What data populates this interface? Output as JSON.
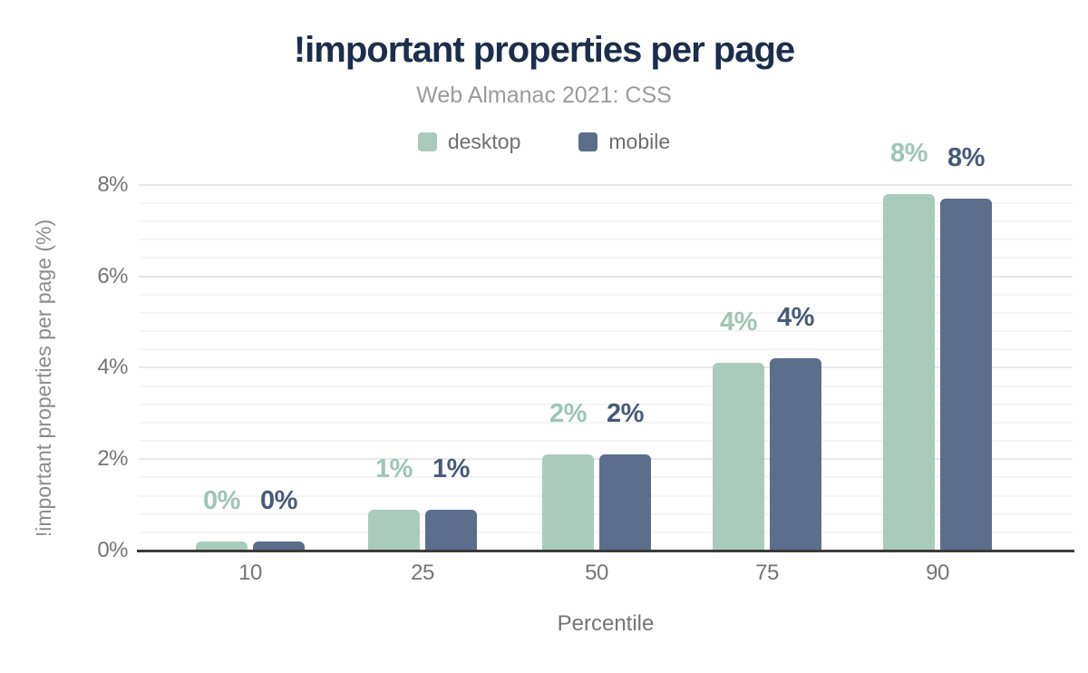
{
  "chart_data": {
    "type": "bar",
    "title": "!important properties per page",
    "subtitle": "Web Almanac 2021: CSS",
    "xlabel": "Percentile",
    "ylabel": "!important properties per page (%)",
    "categories": [
      "10",
      "25",
      "50",
      "75",
      "90"
    ],
    "series": [
      {
        "name": "desktop",
        "color": "#aacbbc",
        "label_color": "#9fc5b4",
        "values": [
          0.2,
          0.9,
          2.1,
          4.1,
          7.8
        ],
        "value_labels": [
          "0%",
          "1%",
          "2%",
          "4%",
          "8%"
        ]
      },
      {
        "name": "mobile",
        "color": "#5c6e8c",
        "label_color": "#48597b",
        "values": [
          0.2,
          0.9,
          2.1,
          4.2,
          7.7
        ],
        "value_labels": [
          "0%",
          "1%",
          "2%",
          "4%",
          "8%"
        ]
      }
    ],
    "ylim": [
      0,
      8
    ],
    "yticks": [
      0,
      2,
      4,
      6,
      8
    ],
    "ytick_labels": [
      "0%",
      "2%",
      "4%",
      "6%",
      "8%"
    ],
    "minor_grid_step": 0.4,
    "grid": true,
    "legend_position": "top"
  },
  "colors": {
    "title_text": "#1d2d4e",
    "subtitle_text": "#9b9b9b",
    "axis_text": "#757575",
    "grid_major": "#e8e8e8",
    "grid_minor": "#f5f5f5",
    "baseline": "#3b3b3b",
    "background": "#ffffff"
  }
}
